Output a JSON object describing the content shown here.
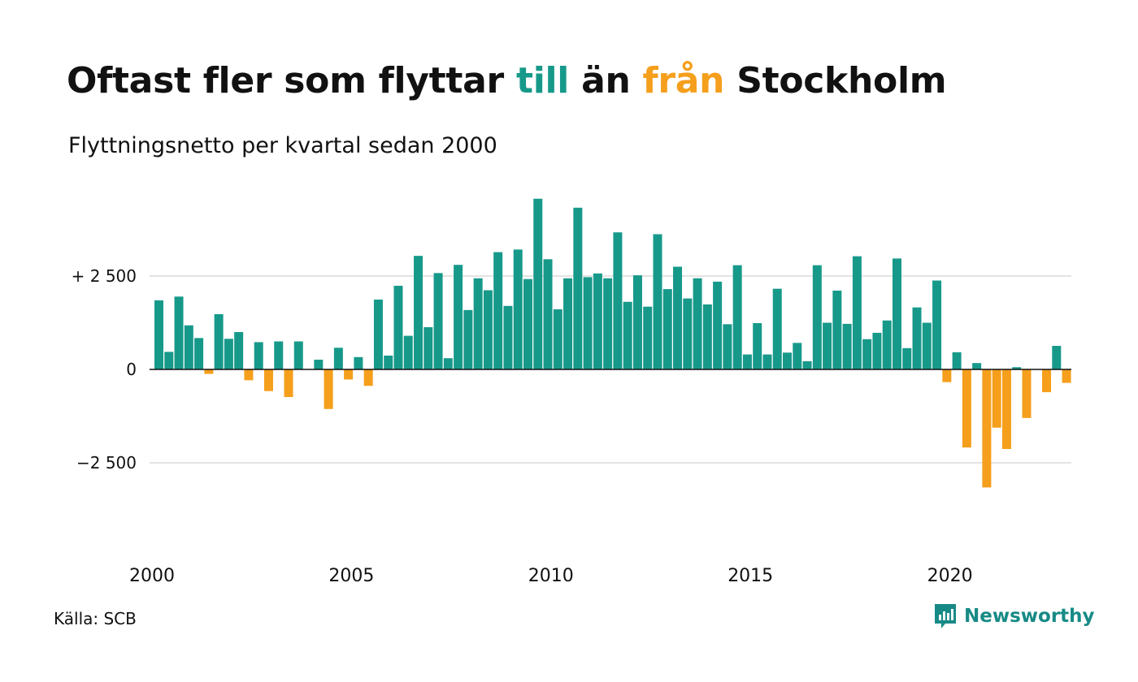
{
  "header": {
    "title_part1": "Oftast fler som flyttar ",
    "title_till": "till",
    "title_part2": " än ",
    "title_fran": "från",
    "title_part3": " Stockholm",
    "subtitle": "Flyttningsnetto per kvartal sedan 2000"
  },
  "footer": {
    "source": "Källa: SCB",
    "brand": "Newsworthy",
    "brand_icon": "newsworthy-logo-icon"
  },
  "colors": {
    "positive": "#17998a",
    "negative": "#f59f1c",
    "text": "#111111",
    "grid": "#e3e3e3",
    "brand": "#178a86"
  },
  "chart_data": {
    "type": "bar",
    "title": "Oftast fler som flyttar till än från Stockholm",
    "subtitle": "Flyttningsnetto per kvartal sedan 2000",
    "x_start": "2000 Q1",
    "x_end": "2023 Q1",
    "x_tick_labels": [
      "2000",
      "2005",
      "2010",
      "2015",
      "2020"
    ],
    "y_ticks": [
      2500,
      0,
      -2500
    ],
    "y_tick_labels": [
      "+ 2 500",
      "0",
      "−2 500"
    ],
    "ylim": [
      -4700,
      4800
    ],
    "grid": true,
    "categories": [
      "2000 Q1",
      "2000 Q2",
      "2000 Q3",
      "2000 Q4",
      "2001 Q1",
      "2001 Q2",
      "2001 Q3",
      "2001 Q4",
      "2002 Q1",
      "2002 Q2",
      "2002 Q3",
      "2002 Q4",
      "2003 Q1",
      "2003 Q2",
      "2003 Q3",
      "2003 Q4",
      "2004 Q1",
      "2004 Q2",
      "2004 Q3",
      "2004 Q4",
      "2005 Q1",
      "2005 Q2",
      "2005 Q3",
      "2005 Q4",
      "2006 Q1",
      "2006 Q2",
      "2006 Q3",
      "2006 Q4",
      "2007 Q1",
      "2007 Q2",
      "2007 Q3",
      "2007 Q4",
      "2008 Q1",
      "2008 Q2",
      "2008 Q3",
      "2008 Q4",
      "2009 Q1",
      "2009 Q2",
      "2009 Q3",
      "2009 Q4",
      "2010 Q1",
      "2010 Q2",
      "2010 Q3",
      "2010 Q4",
      "2011 Q1",
      "2011 Q2",
      "2011 Q3",
      "2011 Q4",
      "2012 Q1",
      "2012 Q2",
      "2012 Q3",
      "2012 Q4",
      "2013 Q1",
      "2013 Q2",
      "2013 Q3",
      "2013 Q4",
      "2014 Q1",
      "2014 Q2",
      "2014 Q3",
      "2014 Q4",
      "2015 Q1",
      "2015 Q2",
      "2015 Q3",
      "2015 Q4",
      "2016 Q1",
      "2016 Q2",
      "2016 Q3",
      "2016 Q4",
      "2017 Q1",
      "2017 Q2",
      "2017 Q3",
      "2017 Q4",
      "2018 Q1",
      "2018 Q2",
      "2018 Q3",
      "2018 Q4",
      "2019 Q1",
      "2019 Q2",
      "2019 Q3",
      "2019 Q4",
      "2020 Q1",
      "2020 Q2",
      "2020 Q3",
      "2020 Q4",
      "2021 Q1",
      "2021 Q2",
      "2021 Q3",
      "2021 Q4",
      "2022 Q1",
      "2022 Q2",
      "2022 Q3",
      "2022 Q4",
      "2023 Q1"
    ],
    "values": [
      1850,
      470,
      1950,
      1180,
      840,
      -120,
      1480,
      820,
      1000,
      -290,
      730,
      -580,
      750,
      -740,
      750,
      0,
      260,
      -1060,
      580,
      -270,
      330,
      -440,
      1870,
      370,
      2240,
      900,
      3040,
      1130,
      2580,
      300,
      2800,
      1590,
      2440,
      2120,
      3140,
      1700,
      3210,
      2420,
      4570,
      2950,
      1610,
      2440,
      4330,
      2470,
      2570,
      2440,
      3670,
      1810,
      2520,
      1680,
      3620,
      2150,
      2750,
      1900,
      2440,
      1740,
      2350,
      1210,
      2790,
      400,
      1240,
      400,
      2160,
      450,
      710,
      220,
      2790,
      1250,
      2110,
      1220,
      3030,
      810,
      980,
      1310,
      2970,
      570,
      1660,
      1250,
      2380,
      -340,
      460,
      -2090,
      170,
      -3160,
      -1560,
      -2130,
      60,
      -1300,
      0,
      -610,
      630,
      -360,
      0
    ]
  }
}
